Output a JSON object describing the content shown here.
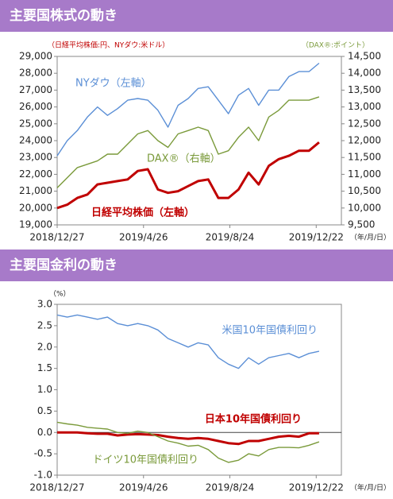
{
  "chart_data": [
    {
      "type": "line",
      "title": "主要国株式の動き",
      "y_unit": "（日経平均株価:円、NYダウ:米ドル）",
      "y2_unit": "（DAX®:ポイント）",
      "x_unit": "（年/月/日）",
      "x": [
        "2018/12/27",
        "2019/1/10",
        "2019/1/24",
        "2019/2/7",
        "2019/2/21",
        "2019/3/7",
        "2019/3/21",
        "2019/4/4",
        "2019/4/18",
        "2019/5/2",
        "2019/5/16",
        "2019/5/30",
        "2019/6/13",
        "2019/6/27",
        "2019/7/11",
        "2019/7/25",
        "2019/8/8",
        "2019/8/22",
        "2019/9/5",
        "2019/9/19",
        "2019/10/3",
        "2019/10/17",
        "2019/10/31",
        "2019/11/14",
        "2019/11/28",
        "2019/12/12",
        "2019/12/26"
      ],
      "xlim": [
        "2018/12/27",
        "2020/1/26"
      ],
      "xticks": [
        "2018/12/27",
        "2019/4/26",
        "2019/8/24",
        "2019/12/22"
      ],
      "ylim": [
        19000,
        29000
      ],
      "yticks": [
        {
          "value": 19000,
          "label": "19,000"
        },
        {
          "value": 20000,
          "label": "20,000"
        },
        {
          "value": 21000,
          "label": "21,000"
        },
        {
          "value": 22000,
          "label": "22,000"
        },
        {
          "value": 23000,
          "label": "23,000"
        },
        {
          "value": 24000,
          "label": "24,000"
        },
        {
          "value": 25000,
          "label": "25,000"
        },
        {
          "value": 26000,
          "label": "26,000"
        },
        {
          "value": 27000,
          "label": "27,000"
        },
        {
          "value": 28000,
          "label": "28,000"
        },
        {
          "value": 29000,
          "label": "29,000"
        }
      ],
      "y2lim": [
        9500,
        14500
      ],
      "y2ticks": [
        {
          "value": 9500,
          "label": "9,500"
        },
        {
          "value": 10000,
          "label": "10,000"
        },
        {
          "value": 10500,
          "label": "10,500"
        },
        {
          "value": 11000,
          "label": "11,000"
        },
        {
          "value": 11500,
          "label": "11,500"
        },
        {
          "value": 12000,
          "label": "12,000"
        },
        {
          "value": 12500,
          "label": "12,500"
        },
        {
          "value": 13000,
          "label": "13,000"
        },
        {
          "value": 13500,
          "label": "13,500"
        },
        {
          "value": 14000,
          "label": "14,000"
        },
        {
          "value": 14500,
          "label": "14,500"
        }
      ],
      "series": [
        {
          "name": "NYダウ（左軸）",
          "color": "#5b8fd6",
          "values": [
            23100,
            24000,
            24600,
            25400,
            26000,
            25500,
            25900,
            26400,
            26500,
            26400,
            25800,
            24800,
            26100,
            26500,
            27100,
            27200,
            26400,
            25600,
            26700,
            27100,
            26100,
            27000,
            27000,
            27800,
            28100,
            28100,
            28600
          ]
        },
        {
          "name": "DAX®（右軸）",
          "color": "#7a9a3a",
          "axis": "y2",
          "values": [
            10600,
            10900,
            11200,
            11300,
            11400,
            11600,
            11600,
            11900,
            12200,
            12300,
            12000,
            11800,
            12200,
            12300,
            12400,
            12300,
            11600,
            11700,
            12100,
            12400,
            12000,
            12700,
            12900,
            13200,
            13200,
            13200,
            13300
          ]
        },
        {
          "name": "日経平均株価（左軸）",
          "color": "#c00000",
          "values": [
            20000,
            20200,
            20600,
            20800,
            21400,
            21500,
            21600,
            21700,
            22200,
            22300,
            21100,
            20900,
            21000,
            21300,
            21600,
            21700,
            20600,
            20600,
            21100,
            22100,
            21400,
            22500,
            22900,
            23100,
            23400,
            23400,
            23900
          ]
        }
      ]
    },
    {
      "type": "line",
      "title": "主要国金利の動き",
      "y_unit": "（%）",
      "x_unit": "（年/月/日）",
      "x": [
        "2018/12/27",
        "2019/1/10",
        "2019/1/24",
        "2019/2/7",
        "2019/2/21",
        "2019/3/7",
        "2019/3/21",
        "2019/4/4",
        "2019/4/18",
        "2019/5/2",
        "2019/5/16",
        "2019/5/30",
        "2019/6/13",
        "2019/6/27",
        "2019/7/11",
        "2019/7/25",
        "2019/8/8",
        "2019/8/22",
        "2019/9/5",
        "2019/9/19",
        "2019/10/3",
        "2019/10/17",
        "2019/10/31",
        "2019/11/14",
        "2019/11/28",
        "2019/12/12",
        "2019/12/26"
      ],
      "xlim": [
        "2018/12/27",
        "2020/1/26"
      ],
      "xticks": [
        "2018/12/27",
        "2019/4/26",
        "2019/8/24",
        "2019/12/22"
      ],
      "ylim": [
        -1,
        3
      ],
      "yticks": [
        {
          "value": -1,
          "label": "-1.0"
        },
        {
          "value": -0.5,
          "label": "-0.5"
        },
        {
          "value": 0,
          "label": "0.0"
        },
        {
          "value": 0.5,
          "label": "0.5"
        },
        {
          "value": 1,
          "label": "1.0"
        },
        {
          "value": 1.5,
          "label": "1.5"
        },
        {
          "value": 2,
          "label": "2.0"
        },
        {
          "value": 2.5,
          "label": "2.5"
        },
        {
          "value": 3,
          "label": "3.0"
        }
      ],
      "series": [
        {
          "name": "米国10年国債利回り",
          "color": "#5b8fd6",
          "values": [
            2.75,
            2.7,
            2.75,
            2.7,
            2.65,
            2.7,
            2.55,
            2.5,
            2.55,
            2.5,
            2.4,
            2.2,
            2.1,
            2.0,
            2.1,
            2.05,
            1.75,
            1.6,
            1.5,
            1.75,
            1.6,
            1.75,
            1.8,
            1.85,
            1.75,
            1.85,
            1.9
          ]
        },
        {
          "name": "日本10年国債利回り",
          "color": "#c00000",
          "values": [
            0.0,
            0.0,
            0.0,
            -0.02,
            -0.03,
            -0.03,
            -0.07,
            -0.05,
            -0.04,
            -0.05,
            -0.06,
            -0.1,
            -0.13,
            -0.15,
            -0.13,
            -0.15,
            -0.2,
            -0.25,
            -0.27,
            -0.2,
            -0.2,
            -0.15,
            -0.1,
            -0.08,
            -0.1,
            -0.02,
            -0.02
          ]
        },
        {
          "name": "ドイツ10年国債利回り",
          "color": "#7a9a3a",
          "values": [
            0.24,
            0.2,
            0.17,
            0.12,
            0.1,
            0.08,
            0.0,
            -0.02,
            0.03,
            0.0,
            -0.1,
            -0.2,
            -0.25,
            -0.32,
            -0.3,
            -0.4,
            -0.6,
            -0.7,
            -0.65,
            -0.5,
            -0.55,
            -0.4,
            -0.35,
            -0.35,
            -0.36,
            -0.3,
            -0.22
          ]
        }
      ]
    }
  ]
}
